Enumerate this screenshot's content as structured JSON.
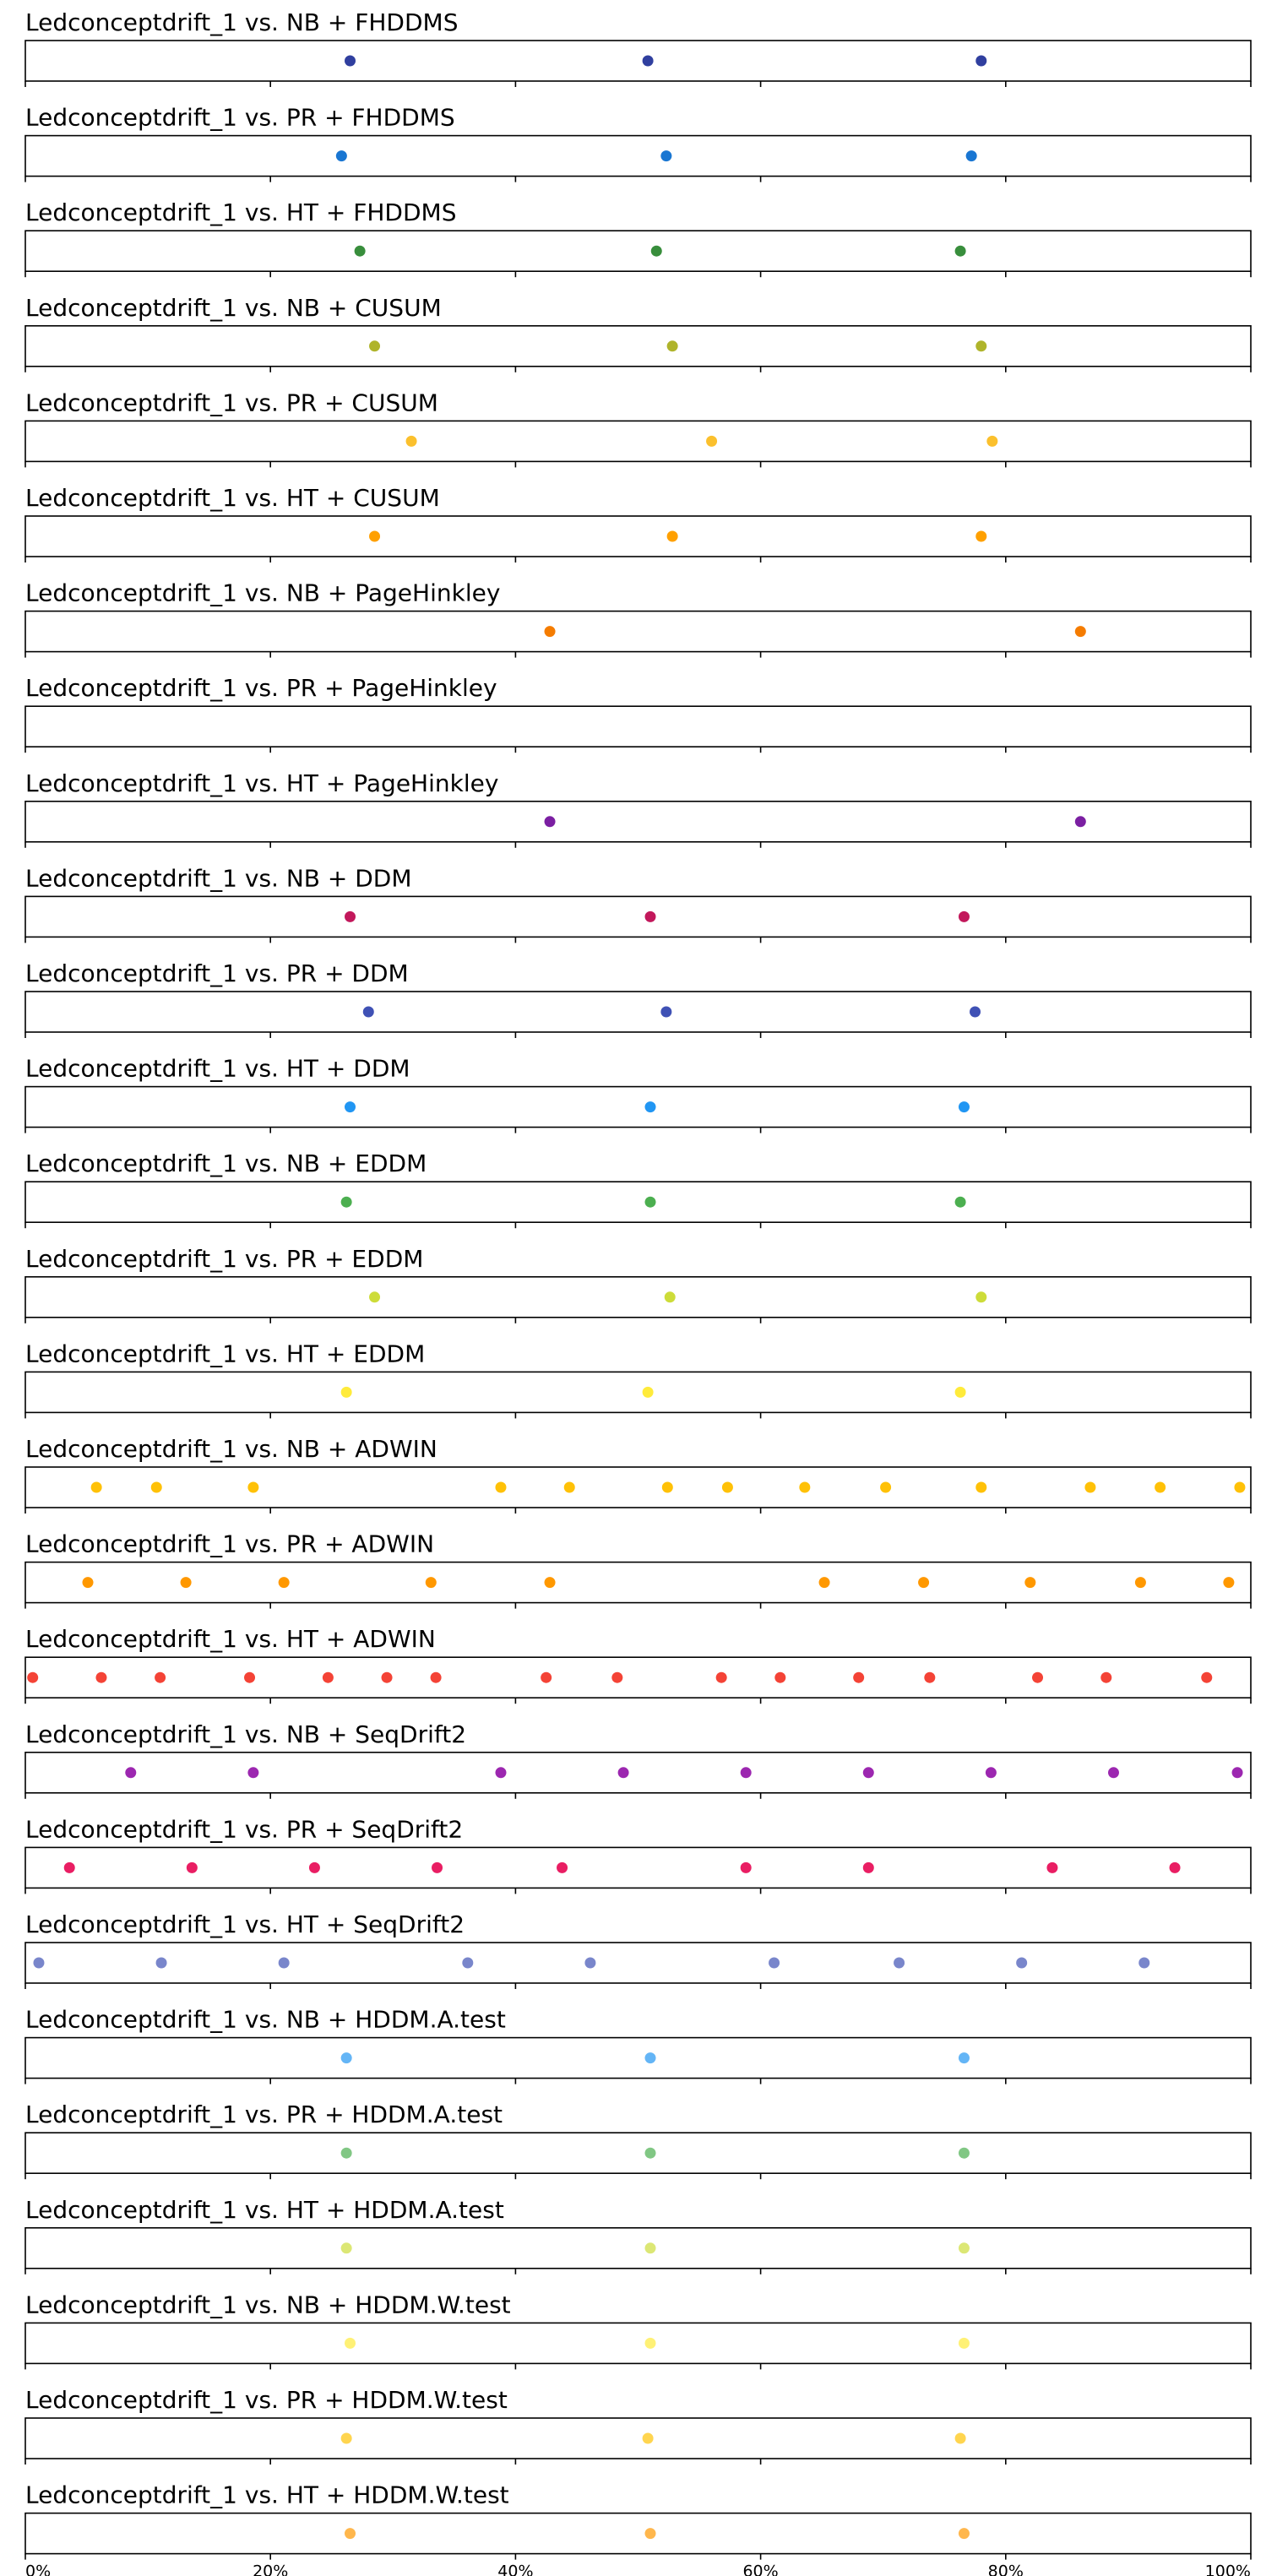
{
  "chart_data": {
    "type": "scatter",
    "xlim": [
      0,
      100
    ],
    "x_unit": "%",
    "x_tick_labels": [
      "0%",
      "20%",
      "40%",
      "60%",
      "80%",
      "100%"
    ],
    "grid": false,
    "subplots": [
      {
        "title": "Ledconceptdrift_1 vs. NB + FHDDMS",
        "color": "#303f9f",
        "x": [
          26.5,
          50.8,
          78.0
        ]
      },
      {
        "title": "Ledconceptdrift_1 vs. PR + FHDDMS",
        "color": "#1976d2",
        "x": [
          25.8,
          52.3,
          77.2
        ]
      },
      {
        "title": "Ledconceptdrift_1 vs. HT + FHDDMS",
        "color": "#388e3c",
        "x": [
          27.3,
          51.5,
          76.3
        ]
      },
      {
        "title": "Ledconceptdrift_1 vs. NB + CUSUM",
        "color": "#afb42b",
        "x": [
          28.5,
          52.8,
          78.0
        ]
      },
      {
        "title": "Ledconceptdrift_1 vs. PR + CUSUM",
        "color": "#fbc02d",
        "x": [
          31.5,
          56.0,
          78.9
        ]
      },
      {
        "title": "Ledconceptdrift_1 vs. HT + CUSUM",
        "color": "#ffa000",
        "x": [
          28.5,
          52.8,
          78.0
        ]
      },
      {
        "title": "Ledconceptdrift_1 vs. NB + PageHinkley",
        "color": "#f57c00",
        "x": [
          42.8,
          86.1
        ]
      },
      {
        "title": "Ledconceptdrift_1 vs. PR + PageHinkley",
        "color": "#e64a19",
        "x": []
      },
      {
        "title": "Ledconceptdrift_1 vs. HT + PageHinkley",
        "color": "#7b1fa2",
        "x": [
          42.8,
          86.1
        ]
      },
      {
        "title": "Ledconceptdrift_1 vs. NB + DDM",
        "color": "#c2185b",
        "x": [
          26.5,
          51.0,
          76.6
        ]
      },
      {
        "title": "Ledconceptdrift_1 vs. PR + DDM",
        "color": "#3f51b5",
        "x": [
          28.0,
          52.3,
          77.5
        ]
      },
      {
        "title": "Ledconceptdrift_1 vs. HT + DDM",
        "color": "#2196f3",
        "x": [
          26.5,
          51.0,
          76.6
        ]
      },
      {
        "title": "Ledconceptdrift_1 vs. NB + EDDM",
        "color": "#4caf50",
        "x": [
          26.2,
          51.0,
          76.3
        ]
      },
      {
        "title": "Ledconceptdrift_1 vs. PR + EDDM",
        "color": "#cddc39",
        "x": [
          28.5,
          52.6,
          78.0
        ]
      },
      {
        "title": "Ledconceptdrift_1 vs. HT + EDDM",
        "color": "#ffeb3b",
        "x": [
          26.2,
          50.8,
          76.3
        ]
      },
      {
        "title": "Ledconceptdrift_1 vs. NB + ADWIN",
        "color": "#ffc107",
        "x": [
          5.8,
          10.7,
          18.6,
          38.8,
          44.4,
          52.4,
          57.3,
          63.6,
          70.2,
          78.0,
          86.9,
          92.6,
          99.1
        ]
      },
      {
        "title": "Ledconceptdrift_1 vs. PR + ADWIN",
        "color": "#ff9800",
        "x": [
          5.1,
          13.1,
          21.1,
          33.1,
          42.8,
          65.2,
          73.3,
          82.0,
          91.0,
          98.2
        ]
      },
      {
        "title": "Ledconceptdrift_1 vs. HT + ADWIN",
        "color": "#f44336",
        "x": [
          0.6,
          6.2,
          11.0,
          18.3,
          24.7,
          29.5,
          33.5,
          42.5,
          48.3,
          56.8,
          61.6,
          68.0,
          73.8,
          82.6,
          88.2,
          96.4
        ]
      },
      {
        "title": "Ledconceptdrift_1 vs. NB + SeqDrift2",
        "color": "#9c27b0",
        "x": [
          8.6,
          18.6,
          38.8,
          48.8,
          58.8,
          68.8,
          78.8,
          88.8,
          98.9
        ]
      },
      {
        "title": "Ledconceptdrift_1 vs. PR + SeqDrift2",
        "color": "#e91e63",
        "x": [
          3.6,
          13.6,
          23.6,
          33.6,
          43.8,
          58.8,
          68.8,
          83.8,
          93.8
        ]
      },
      {
        "title": "Ledconceptdrift_1 vs. HT + SeqDrift2",
        "color": "#7986cb",
        "x": [
          1.1,
          11.1,
          21.1,
          36.1,
          46.1,
          61.1,
          71.3,
          81.3,
          91.3
        ]
      },
      {
        "title": "Ledconceptdrift_1 vs. NB + HDDM.A.test",
        "color": "#64b5f6",
        "x": [
          26.2,
          51.0,
          76.6
        ]
      },
      {
        "title": "Ledconceptdrift_1 vs. PR + HDDM.A.test",
        "color": "#81c784",
        "x": [
          26.2,
          51.0,
          76.6
        ]
      },
      {
        "title": "Ledconceptdrift_1 vs. HT + HDDM.A.test",
        "color": "#dce775",
        "x": [
          26.2,
          51.0,
          76.6
        ]
      },
      {
        "title": "Ledconceptdrift_1 vs. NB + HDDM.W.test",
        "color": "#fff176",
        "x": [
          26.5,
          51.0,
          76.6
        ]
      },
      {
        "title": "Ledconceptdrift_1 vs. PR + HDDM.W.test",
        "color": "#ffd54f",
        "x": [
          26.2,
          50.8,
          76.3
        ]
      },
      {
        "title": "Ledconceptdrift_1 vs. HT + HDDM.W.test",
        "color": "#ffb74d",
        "x": [
          26.5,
          51.0,
          76.6
        ]
      }
    ]
  }
}
